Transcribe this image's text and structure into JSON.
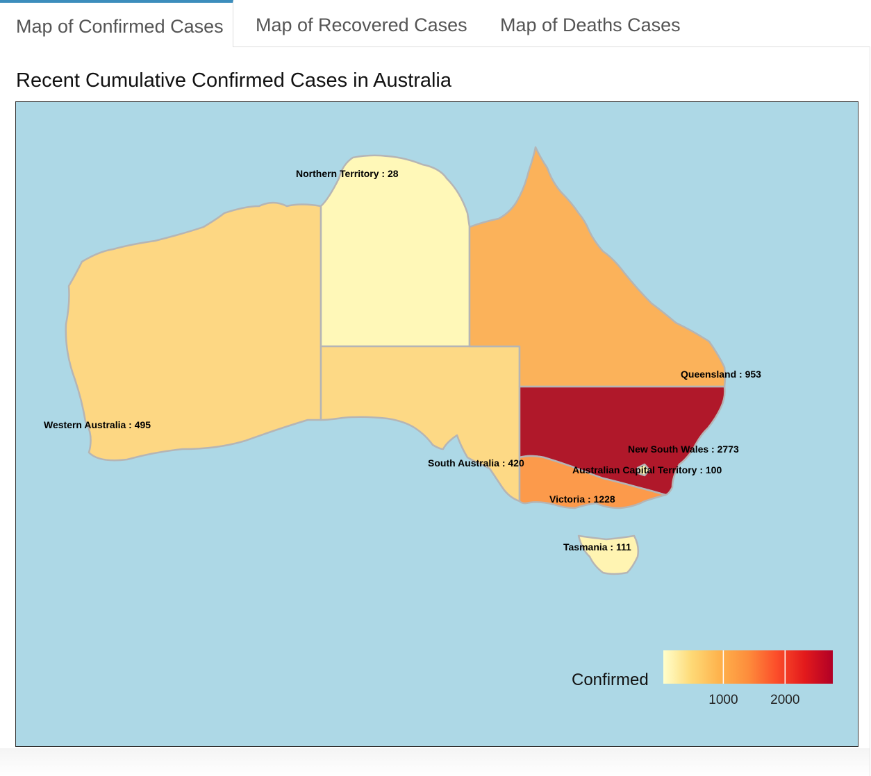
{
  "tabs": [
    {
      "label": "Map of Confirmed Cases",
      "active": true
    },
    {
      "label": "Map of Recovered Cases",
      "active": false
    },
    {
      "label": "Map of Deaths Cases",
      "active": false
    }
  ],
  "map": {
    "title": "Recent Cumulative Confirmed Cases in Australia",
    "background_color": "#add8e6",
    "regions": [
      {
        "name": "Northern Territory",
        "value": 28,
        "label": "Northern Territory : 28",
        "color": "#fff8b8"
      },
      {
        "name": "Western Australia",
        "value": 495,
        "label": "Western Australia : 495",
        "color": "#fdd783"
      },
      {
        "name": "South Australia",
        "value": 420,
        "label": "South Australia : 420",
        "color": "#fdd985"
      },
      {
        "name": "Queensland",
        "value": 953,
        "label": "Queensland : 953",
        "color": "#fbb25a"
      },
      {
        "name": "New South Wales",
        "value": 2773,
        "label": "New South Wales : 2773",
        "color": "#b0182a"
      },
      {
        "name": "Australian Capital Territory",
        "value": 100,
        "label": "Australian Capital Territory : 100",
        "color": "#fff1ad"
      },
      {
        "name": "Victoria",
        "value": 1228,
        "label": "Victoria : 1228",
        "color": "#fc9a4b"
      },
      {
        "name": "Tasmania",
        "value": 111,
        "label": "Tasmania : 111",
        "color": "#fff4b2"
      }
    ],
    "legend": {
      "title": "Confirmed",
      "ticks": [
        "1000",
        "2000"
      ],
      "min": 28,
      "max": 2773,
      "colors": [
        "#ffffcc",
        "#fed976",
        "#feb24c",
        "#fd8d3c",
        "#fc4e2a",
        "#e31a1c",
        "#b10026"
      ]
    },
    "border_color": "#b5b5b5"
  }
}
